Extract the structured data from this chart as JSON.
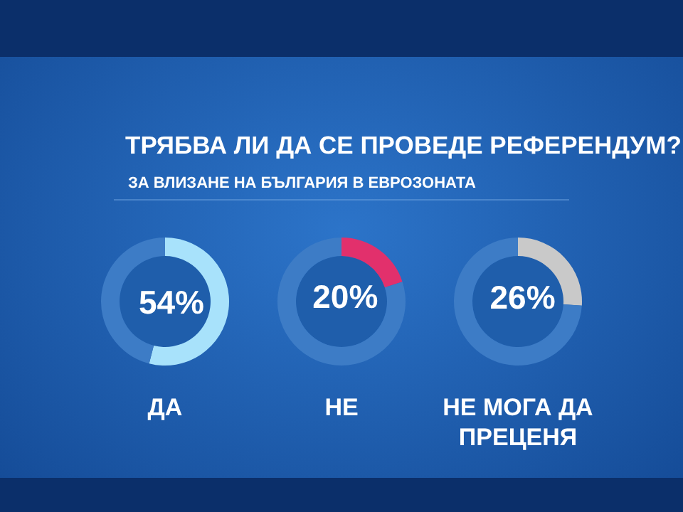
{
  "chart_data": [
    {
      "type": "other",
      "title": "ТРЯБВА ЛИ ДА СЕ ПРОВЕДЕ РЕФЕРЕНДУМ?",
      "subtitle": "ЗА ВЛИЗАНЕ НА БЪЛГАРИЯ В ЕВРОЗОНАТА"
    },
    {
      "type": "donut",
      "title": "ДА",
      "categories": [
        null,
        null
      ],
      "values": [
        54,
        46
      ],
      "colors": [
        "#a8e2fb",
        "#3d7cc6"
      ],
      "value_labels": [
        "54%",
        null
      ]
    },
    {
      "type": "donut",
      "title": "НЕ",
      "categories": [
        null,
        null
      ],
      "values": [
        20,
        80
      ],
      "colors": [
        "#e2306c",
        "#3d7cc6"
      ],
      "value_labels": [
        "20%",
        null
      ]
    },
    {
      "type": "donut",
      "title": "НЕ МОГА ДА ПРЕЦЕНЯ",
      "categories": [
        null,
        null
      ],
      "values": [
        26,
        74
      ],
      "colors": [
        "#c9c9c9",
        "#3d7cc6"
      ],
      "value_labels": [
        "26%",
        null
      ]
    }
  ]
}
